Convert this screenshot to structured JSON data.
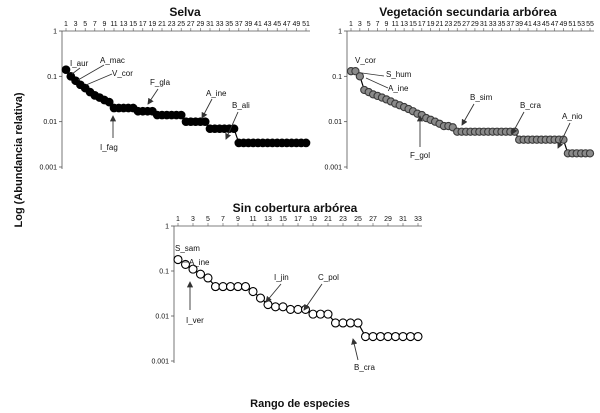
{
  "figure": {
    "ylabel": "Log (Abundancia relativa)",
    "xlabel": "Rango de especies"
  },
  "chart_data": [
    {
      "type": "line",
      "title": "Selva",
      "marker": "filled-circle",
      "ylog": true,
      "ylim": [
        0.001,
        1
      ],
      "yticks": [
        "1",
        "0.1",
        "0.01",
        "0.001"
      ],
      "xticks": [
        "1",
        "3",
        "5",
        "7",
        "9",
        "11",
        "13",
        "15",
        "17",
        "19",
        "21",
        "23",
        "25",
        "27",
        "29",
        "31",
        "33",
        "35",
        "37",
        "39",
        "41",
        "43",
        "45",
        "47",
        "49",
        "51"
      ],
      "x": [
        1,
        2,
        3,
        4,
        5,
        6,
        7,
        8,
        9,
        10,
        11,
        12,
        13,
        14,
        15,
        16,
        17,
        18,
        19,
        20,
        21,
        22,
        23,
        24,
        25,
        26,
        27,
        28,
        29,
        30,
        31,
        32,
        33,
        34,
        35,
        36,
        37,
        38,
        39,
        40,
        41,
        42,
        43,
        44,
        45,
        46,
        47,
        48,
        49,
        50,
        51
      ],
      "y": [
        0.14,
        0.1,
        0.08,
        0.065,
        0.055,
        0.045,
        0.038,
        0.034,
        0.03,
        0.027,
        0.02,
        0.02,
        0.02,
        0.02,
        0.02,
        0.017,
        0.017,
        0.017,
        0.017,
        0.014,
        0.014,
        0.014,
        0.014,
        0.014,
        0.014,
        0.01,
        0.01,
        0.01,
        0.01,
        0.01,
        0.007,
        0.007,
        0.007,
        0.007,
        0.007,
        0.007,
        0.0034,
        0.0034,
        0.0034,
        0.0034,
        0.0034,
        0.0034,
        0.0034,
        0.0034,
        0.0034,
        0.0034,
        0.0034,
        0.0034,
        0.0034,
        0.0034,
        0.0034
      ],
      "annotations": [
        {
          "label": "I_aur",
          "rank": 1
        },
        {
          "label": "A_mac",
          "rank": 2
        },
        {
          "label": "V_cor",
          "rank": 3
        },
        {
          "label": "F_gla",
          "rank": 17
        },
        {
          "label": "I_fag",
          "rank": 11
        },
        {
          "label": "A_ine",
          "rank": 32
        },
        {
          "label": "B_ali",
          "rank": 37
        }
      ]
    },
    {
      "type": "line",
      "title": "Vegetación secundaria arbórea",
      "marker": "grey-circle",
      "ylog": true,
      "ylim": [
        0.001,
        1
      ],
      "yticks": [
        "1",
        "0.1",
        "0.01",
        "0.001"
      ],
      "xticks": [
        "1",
        "3",
        "5",
        "7",
        "9",
        "11",
        "13",
        "15",
        "17",
        "19",
        "21",
        "23",
        "25",
        "27",
        "29",
        "31",
        "33",
        "35",
        "37",
        "39",
        "41",
        "43",
        "45",
        "47",
        "49",
        "51",
        "53",
        "55"
      ],
      "x": [
        1,
        2,
        3,
        4,
        5,
        6,
        7,
        8,
        9,
        10,
        11,
        12,
        13,
        14,
        15,
        16,
        17,
        18,
        19,
        20,
        21,
        22,
        23,
        24,
        25,
        26,
        27,
        28,
        29,
        30,
        31,
        32,
        33,
        34,
        35,
        36,
        37,
        38,
        39,
        40,
        41,
        42,
        43,
        44,
        45,
        46,
        47,
        48,
        49,
        50,
        51,
        52,
        53,
        54,
        55
      ],
      "y": [
        0.13,
        0.13,
        0.1,
        0.05,
        0.045,
        0.04,
        0.037,
        0.034,
        0.031,
        0.028,
        0.025,
        0.023,
        0.021,
        0.019,
        0.017,
        0.015,
        0.014,
        0.012,
        0.011,
        0.01,
        0.009,
        0.008,
        0.008,
        0.0075,
        0.006,
        0.006,
        0.006,
        0.006,
        0.006,
        0.006,
        0.006,
        0.006,
        0.006,
        0.006,
        0.006,
        0.006,
        0.006,
        0.006,
        0.004,
        0.004,
        0.004,
        0.004,
        0.004,
        0.004,
        0.004,
        0.004,
        0.004,
        0.004,
        0.004,
        0.002,
        0.002,
        0.002,
        0.002,
        0.002,
        0.002
      ],
      "annotations": [
        {
          "label": "V_cor",
          "rank": 1
        },
        {
          "label": "S_hum",
          "rank": 2
        },
        {
          "label": "A_ine",
          "rank": 3
        },
        {
          "label": "F_gol",
          "rank": 16
        },
        {
          "label": "B_sim",
          "rank": 25
        },
        {
          "label": "B_cra",
          "rank": 39
        },
        {
          "label": "A_nio",
          "rank": 50
        }
      ]
    },
    {
      "type": "line",
      "title": "Sin cobertura arbórea",
      "marker": "open-circle",
      "ylog": true,
      "ylim": [
        0.001,
        1
      ],
      "yticks": [
        "1",
        "0.1",
        "0.01",
        "0.001"
      ],
      "xticks": [
        "1",
        "3",
        "5",
        "7",
        "9",
        "11",
        "13",
        "15",
        "17",
        "19",
        "21",
        "23",
        "25",
        "27",
        "29",
        "31",
        "33"
      ],
      "x": [
        1,
        2,
        3,
        4,
        5,
        6,
        7,
        8,
        9,
        10,
        11,
        12,
        13,
        14,
        15,
        16,
        17,
        18,
        19,
        20,
        21,
        22,
        23,
        24,
        25,
        26,
        27,
        28,
        29,
        30,
        31,
        32,
        33
      ],
      "y": [
        0.18,
        0.14,
        0.11,
        0.085,
        0.07,
        0.045,
        0.045,
        0.045,
        0.045,
        0.045,
        0.035,
        0.025,
        0.018,
        0.016,
        0.016,
        0.014,
        0.014,
        0.014,
        0.011,
        0.011,
        0.011,
        0.007,
        0.007,
        0.007,
        0.007,
        0.0035,
        0.0035,
        0.0035,
        0.0035,
        0.0035,
        0.0035,
        0.0035,
        0.0035
      ],
      "annotations": [
        {
          "label": "S_sam",
          "rank": 1
        },
        {
          "label": "A_ine",
          "rank": 2
        },
        {
          "label": "I_ver",
          "rank": 3
        },
        {
          "label": "I_jin",
          "rank": 12
        },
        {
          "label": "C_pol",
          "rank": 16
        },
        {
          "label": "B_cra",
          "rank": 26
        }
      ]
    }
  ]
}
